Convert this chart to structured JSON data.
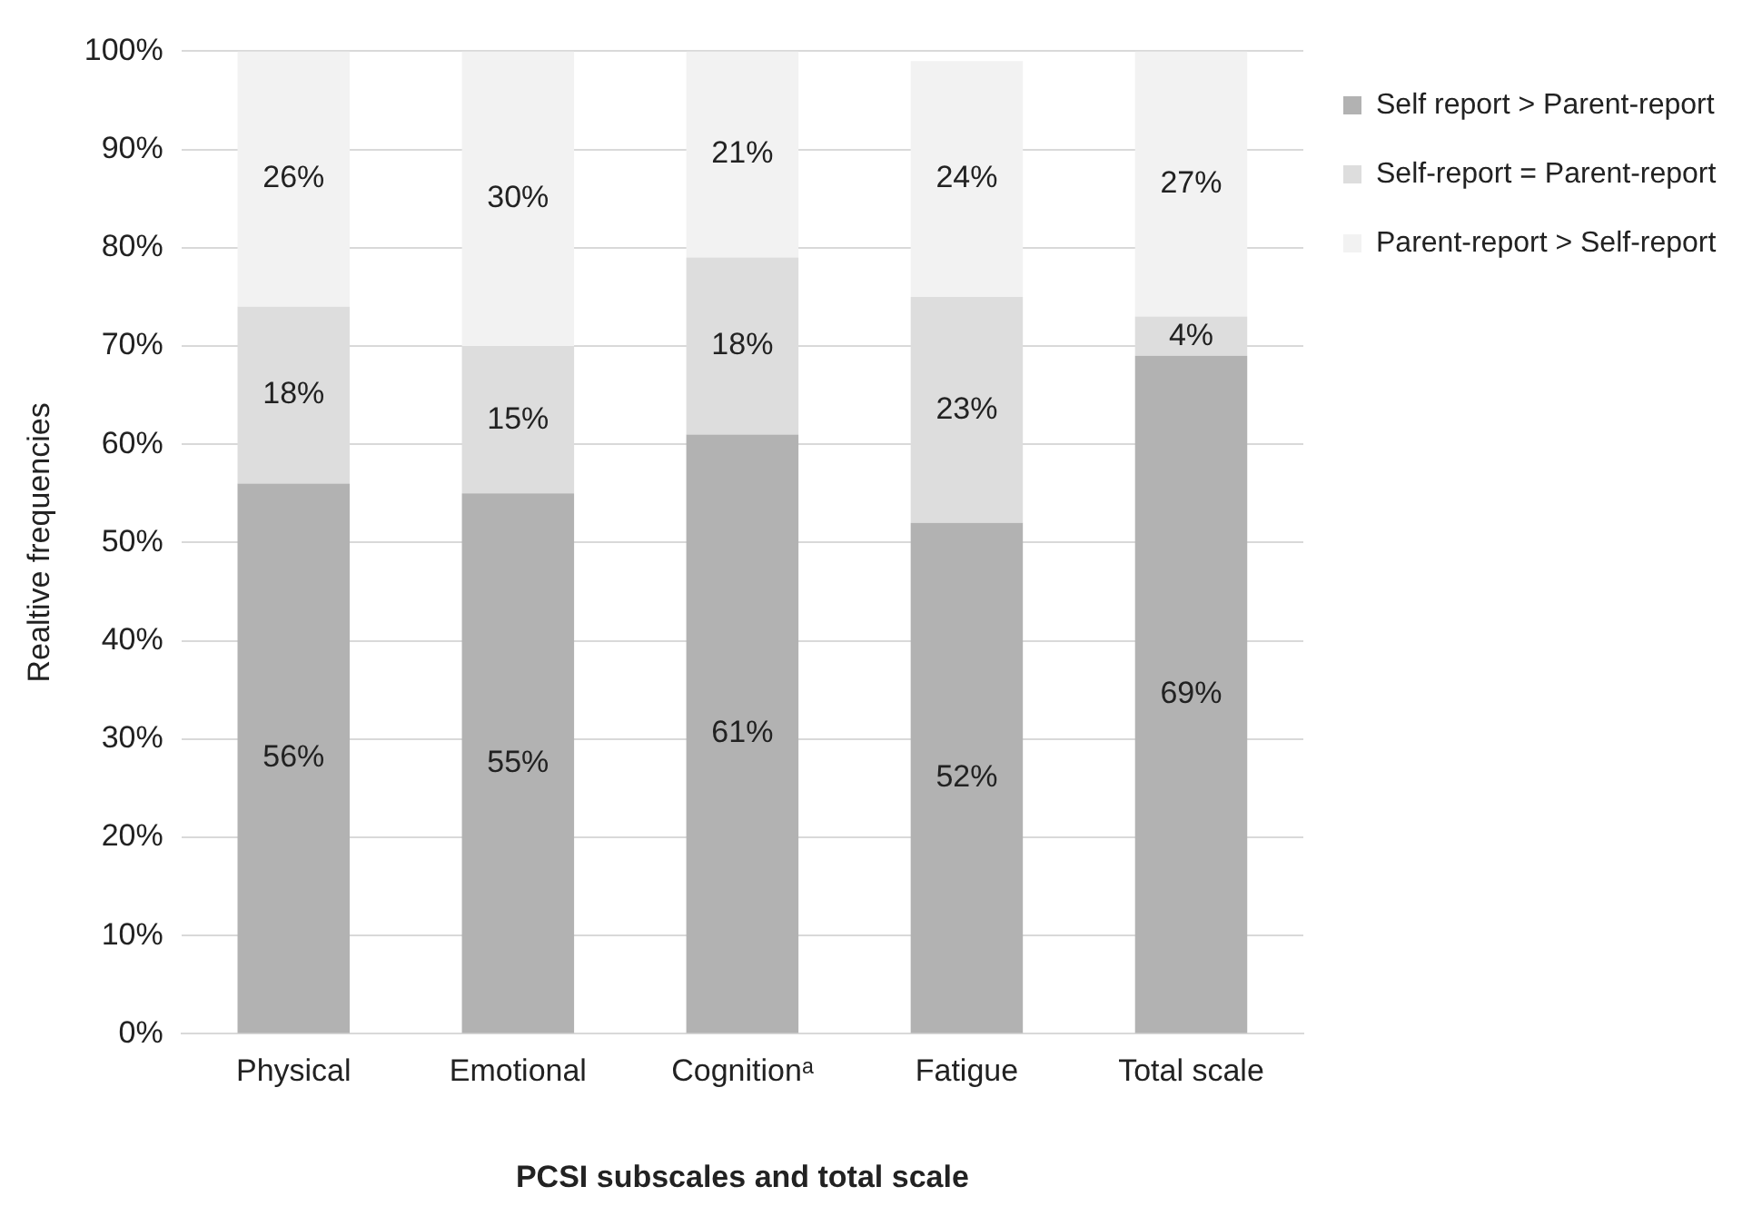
{
  "chart_data": {
    "type": "bar",
    "stacked": true,
    "xlabel": "PCSI subscales and total scale",
    "ylabel": "Realtive frequencies",
    "categories": [
      "Physical",
      "Emotional",
      "Cognitionᵃ",
      "Fatigue",
      "Total scale"
    ],
    "series": [
      {
        "name": "Self report > Parent-report",
        "color": "#b2b2b2",
        "values": [
          56,
          55,
          61,
          52,
          69
        ],
        "value_labels": [
          "56%",
          "55%",
          "61%",
          "52%",
          "69%"
        ]
      },
      {
        "name": "Self-report = Parent-report",
        "color": "#dddddd",
        "values": [
          18,
          15,
          18,
          23,
          4
        ],
        "value_labels": [
          "18%",
          "15%",
          "18%",
          "23%",
          "4%"
        ]
      },
      {
        "name": "Parent-report > Self-report",
        "color": "#f2f2f2",
        "values": [
          26,
          30,
          21,
          24,
          27
        ],
        "value_labels": [
          "26%",
          "30%",
          "21%",
          "24%",
          "27%"
        ]
      }
    ],
    "ylim": [
      0,
      100
    ],
    "yticks": [
      {
        "value": 0,
        "label": "0%"
      },
      {
        "value": 10,
        "label": "10%"
      },
      {
        "value": 20,
        "label": "20%"
      },
      {
        "value": 30,
        "label": "30%"
      },
      {
        "value": 40,
        "label": "40%"
      },
      {
        "value": 50,
        "label": "50%"
      },
      {
        "value": 60,
        "label": "60%"
      },
      {
        "value": 70,
        "label": "70%"
      },
      {
        "value": 80,
        "label": "80%"
      },
      {
        "value": 90,
        "label": "90%"
      },
      {
        "value": 100,
        "label": "100%"
      }
    ],
    "grid": "y",
    "legend": "right"
  }
}
